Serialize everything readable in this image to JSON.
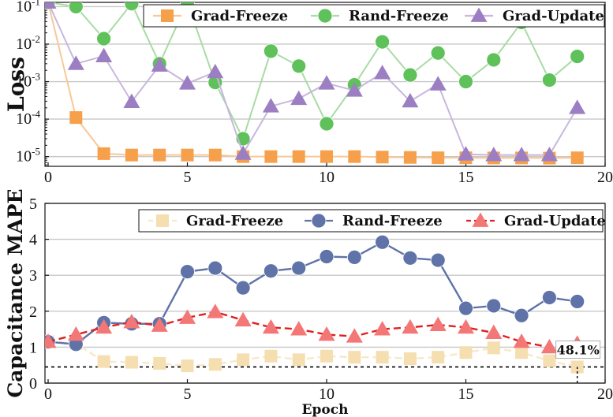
{
  "chart_data": [
    {
      "type": "line",
      "ylabel": "Loss",
      "yscale": "log",
      "xlim": [
        0,
        20
      ],
      "ylim": [
        5.5e-06,
        0.13
      ],
      "xticks": [
        0,
        5,
        10,
        15,
        20
      ],
      "yticks": [
        {
          "value": 0.1,
          "base": "10",
          "exp": "-1"
        },
        {
          "value": 0.01,
          "base": "10",
          "exp": "-2"
        },
        {
          "value": 0.001,
          "base": "10",
          "exp": "-3"
        },
        {
          "value": 0.0001,
          "base": "10",
          "exp": "-4"
        },
        {
          "value": 1e-05,
          "base": "10",
          "exp": "-5"
        }
      ],
      "legend_position": "top-right",
      "series": [
        {
          "name": "Grad-Freeze",
          "marker": "square",
          "color": "#F7A04B",
          "line_color": "#F9C895",
          "x": [
            0,
            1,
            2,
            3,
            4,
            5,
            6,
            7,
            8,
            9,
            10,
            11,
            12,
            13,
            14,
            15,
            16,
            17,
            18,
            19
          ],
          "values": [
            0.13,
            0.00011,
            1.2e-05,
            1.1e-05,
            1.1e-05,
            1.1e-05,
            1.1e-05,
            1e-05,
            1e-05,
            1e-05,
            1e-05,
            1e-05,
            9.7e-06,
            9.5e-06,
            9.3e-06,
            9.3e-06,
            9.2e-06,
            9.2e-06,
            9.1e-06,
            9.3e-06
          ]
        },
        {
          "name": "Rand-Freeze",
          "marker": "circle",
          "color": "#5EC15A",
          "line_color": "#A8DCA3",
          "x": [
            0,
            1,
            2,
            3,
            4,
            5,
            6,
            7,
            8,
            9,
            10,
            11,
            12,
            13,
            14,
            15,
            16,
            17,
            18,
            19
          ],
          "values": [
            0.13,
            0.1,
            0.014,
            0.12,
            0.003,
            0.13,
            0.00095,
            3e-05,
            0.0065,
            0.0026,
            7.5e-05,
            0.00082,
            0.0115,
            0.0015,
            0.0058,
            0.001,
            0.0038,
            0.038,
            0.0011,
            0.0047
          ]
        },
        {
          "name": "Grad-Update",
          "marker": "triangle",
          "color": "#9B7FC2",
          "line_color": "#C8B7DE",
          "x": [
            0,
            1,
            2,
            3,
            4,
            5,
            6,
            7,
            8,
            9,
            10,
            11,
            12,
            13,
            14,
            15,
            16,
            17,
            18,
            19
          ],
          "values": [
            0.13,
            0.003,
            0.0048,
            0.00029,
            0.0027,
            0.0009,
            0.0018,
            1.2e-05,
            0.00022,
            0.00035,
            0.0009,
            0.00058,
            0.0017,
            0.0003,
            0.00085,
            1.15e-05,
            1.1e-05,
            1.1e-05,
            1.1e-05,
            0.0002
          ]
        }
      ]
    },
    {
      "type": "line",
      "ylabel": "Capacitance MAPE",
      "xlabel": "Epoch",
      "xlim": [
        0,
        20
      ],
      "ylim": [
        0,
        5
      ],
      "xticks": [
        0,
        5,
        10,
        15,
        20
      ],
      "yticks": [
        0,
        1,
        2,
        3,
        4,
        5
      ],
      "legend_position": "top-right",
      "reference_line": {
        "y": 0.45,
        "style": "dotted"
      },
      "annotation": {
        "text": "48.1%",
        "x": 19
      },
      "series": [
        {
          "name": "Grad-Freeze",
          "marker": "square",
          "color": "#F5DEB0",
          "line_color": "#F8E8C9",
          "x": [
            0,
            1,
            2,
            3,
            4,
            5,
            6,
            7,
            8,
            9,
            10,
            11,
            12,
            13,
            14,
            15,
            16,
            17,
            18,
            19
          ],
          "values": [
            1.15,
            1.1,
            0.6,
            0.58,
            0.55,
            0.48,
            0.52,
            0.65,
            0.75,
            0.65,
            0.75,
            0.72,
            0.72,
            0.68,
            0.72,
            0.85,
            0.98,
            0.85,
            0.62,
            0.45
          ]
        },
        {
          "name": "Rand-Freeze",
          "marker": "circle",
          "color": "#5F73A8",
          "line_color": "#5F73A8",
          "x": [
            0,
            1,
            2,
            3,
            4,
            5,
            6,
            7,
            8,
            9,
            10,
            11,
            12,
            13,
            14,
            15,
            16,
            17,
            18,
            19
          ],
          "values": [
            1.15,
            1.08,
            1.68,
            1.65,
            1.65,
            3.1,
            3.2,
            2.65,
            3.12,
            3.2,
            3.52,
            3.5,
            3.92,
            3.48,
            3.42,
            2.08,
            2.15,
            1.88,
            2.38,
            2.27
          ]
        },
        {
          "name": "Grad-Update",
          "marker": "triangle",
          "color": "#F47777",
          "line_color": "#E02020",
          "x": [
            0,
            1,
            2,
            3,
            4,
            5,
            6,
            7,
            8,
            9,
            10,
            11,
            12,
            13,
            14,
            15,
            16,
            17,
            18,
            19
          ],
          "values": [
            1.15,
            1.35,
            1.55,
            1.7,
            1.6,
            1.82,
            1.98,
            1.75,
            1.55,
            1.5,
            1.35,
            1.3,
            1.5,
            1.55,
            1.62,
            1.55,
            1.4,
            1.15,
            1.0,
            1.1
          ]
        }
      ]
    }
  ]
}
